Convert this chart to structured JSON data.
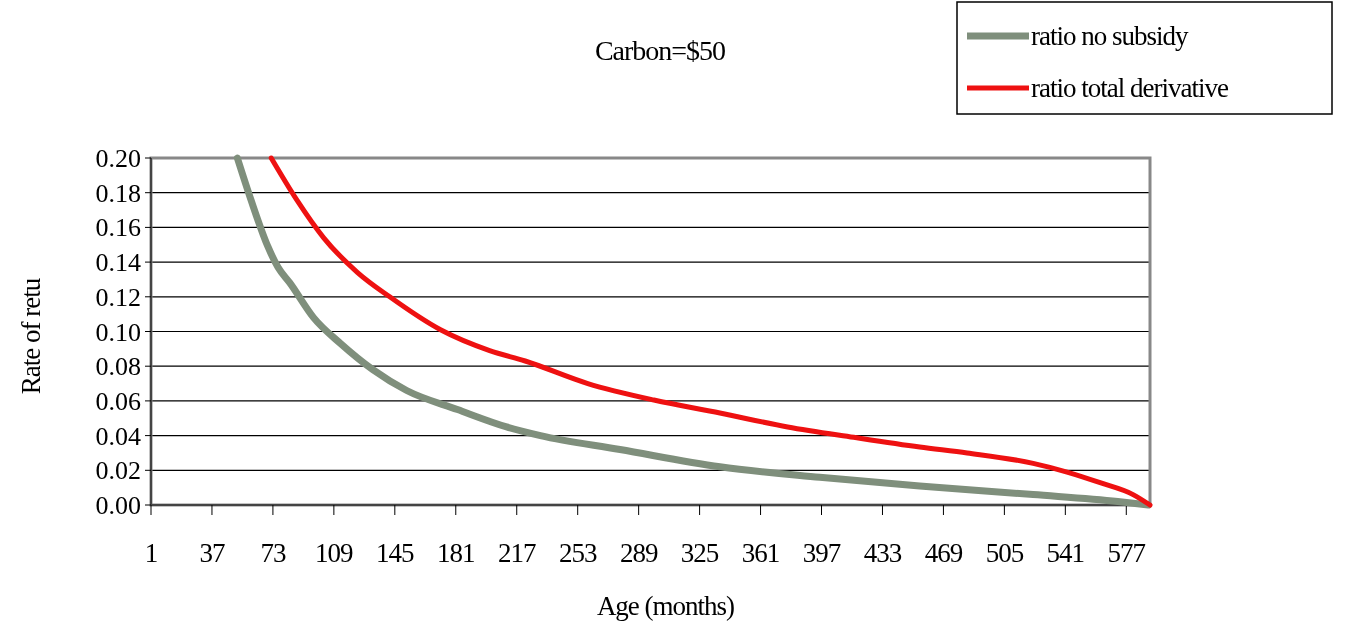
{
  "chart_data": {
    "type": "line",
    "title": "Carbon=$50",
    "xlabel": "Age (months)",
    "ylabel": "Rate of retu",
    "xlim": [
      1,
      591
    ],
    "xticks": [
      1,
      37,
      73,
      109,
      145,
      181,
      217,
      253,
      289,
      325,
      361,
      397,
      433,
      469,
      505,
      541,
      577
    ],
    "ylim": [
      0,
      0.2
    ],
    "yticks": [
      {
        "value": 0,
        "label": "0.00"
      },
      {
        "value": 0.02,
        "label": "0.02"
      },
      {
        "value": 0.04,
        "label": "0.04"
      },
      {
        "value": 0.06,
        "label": "0.06"
      },
      {
        "value": 0.08,
        "label": "0.08"
      },
      {
        "value": 0.1,
        "label": "0.10"
      },
      {
        "value": 0.12,
        "label": "0.12"
      },
      {
        "value": 0.14,
        "label": "0.14"
      },
      {
        "value": 0.16,
        "label": "0.16"
      },
      {
        "value": 0.18,
        "label": "0.18"
      },
      {
        "value": 0.2,
        "label": "0.20"
      }
    ],
    "grid": "y",
    "legend": "top right",
    "marker": "none",
    "line_style": "solid",
    "series": [
      {
        "name": "ratio no subsidy",
        "color": "#7f8f7c",
        "x": [
          52,
          60,
          70,
          76,
          83,
          97,
          113,
          132,
          152,
          182,
          211,
          231,
          278,
          337,
          396,
          455,
          522,
          572,
          590
        ],
        "values": [
          0.2,
          0.176,
          0.149,
          0.137,
          0.128,
          0.108,
          0.093,
          0.078,
          0.066,
          0.055,
          0.045,
          0.04,
          0.032,
          0.022,
          0.016,
          0.011,
          0.006,
          0.002,
          0
        ]
      },
      {
        "name": "ratio total derivative",
        "color": "#ee1111",
        "x": [
          72,
          87,
          103,
          123,
          142,
          172,
          201,
          222,
          259,
          298,
          337,
          377,
          416,
          455,
          483,
          522,
          542,
          562,
          581,
          591
        ],
        "values": [
          0.2,
          0.176,
          0.154,
          0.134,
          0.12,
          0.101,
          0.089,
          0.083,
          0.07,
          0.0605,
          0.053,
          0.045,
          0.039,
          0.0334,
          0.03,
          0.024,
          0.019,
          0.0127,
          0.006,
          0
        ]
      }
    ]
  }
}
